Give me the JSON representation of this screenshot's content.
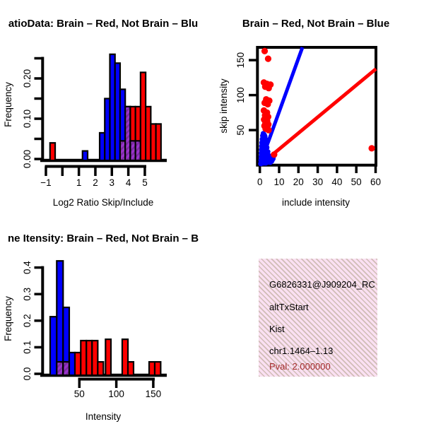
{
  "colors": {
    "red": "#FF0000",
    "blue": "#0000FF",
    "axis": "#000000",
    "background": "#FFFFFF",
    "overlap_base": "#9933CC",
    "overlap_stripe": "#7A2B9E",
    "pval_text": "#A52A2A",
    "info_bg": "#FAE0F2"
  },
  "chart_data": [
    {
      "type": "bar",
      "id": "ratio-histogram",
      "title": "atioData: Brain – Red, Not Brain – Blu",
      "xlabel": "Log2 Ratio Skip/Include",
      "ylabel": "Frequency",
      "xlim": [
        -1.3,
        6.2
      ],
      "ylim": [
        0,
        0.27
      ],
      "x_ticks": [
        -1,
        0,
        1,
        2,
        3,
        4,
        5
      ],
      "x_tick_labels": [
        "−1",
        "",
        "1",
        "2",
        "3",
        "4",
        "5"
      ],
      "y_ticks": [
        0,
        0.05,
        0.1,
        0.15,
        0.2,
        0.25
      ],
      "y_tick_labels": [
        "0.00",
        "",
        "0.10",
        "",
        "0.20",
        ""
      ],
      "legend_note": "red = Brain, blue = Not Brain, hatched purple = overlap",
      "bars": [
        {
          "x0": -0.75,
          "x1": -0.44,
          "h": 0.04,
          "color": "red",
          "overlap_h": 0
        },
        {
          "x0": 1.22,
          "x1": 1.53,
          "h": 0.02,
          "color": "blue",
          "overlap_h": 0
        },
        {
          "x0": 2.26,
          "x1": 2.57,
          "h": 0.065,
          "color": "blue",
          "overlap_h": 0
        },
        {
          "x0": 2.57,
          "x1": 2.88,
          "h": 0.15,
          "color": "blue",
          "overlap_h": 0
        },
        {
          "x0": 2.88,
          "x1": 3.19,
          "h": 0.26,
          "color": "blue",
          "overlap_h": 0
        },
        {
          "x0": 3.19,
          "x1": 3.5,
          "h": 0.238,
          "color": "blue",
          "overlap_h": 0
        },
        {
          "x0": 3.5,
          "x1": 3.81,
          "h": 0.173,
          "color": "blue",
          "overlap_h": 0.045
        },
        {
          "x0": 3.81,
          "x1": 4.12,
          "h": 0.13,
          "color": "red",
          "overlap_h": 0.13
        },
        {
          "x0": 4.12,
          "x1": 4.43,
          "h": 0.13,
          "color": "red",
          "overlap_h": 0.045
        },
        {
          "x0": 4.43,
          "x1": 4.74,
          "h": 0.13,
          "color": "red",
          "overlap_h": 0.045
        },
        {
          "x0": 4.74,
          "x1": 5.05,
          "h": 0.215,
          "color": "red",
          "overlap_h": 0
        },
        {
          "x0": 5.05,
          "x1": 5.36,
          "h": 0.13,
          "color": "red",
          "overlap_h": 0
        },
        {
          "x0": 5.36,
          "x1": 5.67,
          "h": 0.087,
          "color": "red",
          "overlap_h": 0
        },
        {
          "x0": 5.67,
          "x1": 5.98,
          "h": 0.087,
          "color": "red",
          "overlap_h": 0
        }
      ]
    },
    {
      "type": "scatter",
      "id": "intensity-scatter",
      "title": "Brain – Red, Not Brain – Blue",
      "xlabel": "include intensity",
      "ylabel": "skip intensity",
      "xlim": [
        -1.5,
        60.2
      ],
      "ylim": [
        -0.5,
        168
      ],
      "x_ticks": [
        0,
        10,
        20,
        30,
        40,
        50,
        60
      ],
      "x_tick_labels": [
        "0",
        "10",
        "20",
        "30",
        "40",
        "50",
        "60"
      ],
      "y_ticks": [
        50,
        100,
        150
      ],
      "y_tick_labels": [
        "50",
        "100",
        "150"
      ],
      "lines": [
        {
          "color": "blue",
          "slope_note": "steep fit line",
          "px": [
            367.7,
            233.6,
            428,
            67
          ]
        },
        {
          "color": "red",
          "slope_note": "shallow fit line",
          "px": [
            367.7,
            233.6,
            532,
            97.5
          ]
        }
      ],
      "red_points": [
        [
          2.5,
          163
        ],
        [
          4.3,
          152
        ],
        [
          2.1,
          118
        ],
        [
          3.7,
          116
        ],
        [
          5.5,
          115
        ],
        [
          2.8,
          112
        ],
        [
          4.6,
          110
        ],
        [
          3.3,
          94
        ],
        [
          4.9,
          92
        ],
        [
          2.5,
          89
        ],
        [
          4.1,
          87
        ],
        [
          2.1,
          78
        ],
        [
          3.7,
          75
        ],
        [
          2.7,
          71
        ],
        [
          4.3,
          69
        ],
        [
          2.2,
          65
        ],
        [
          3.8,
          63
        ],
        [
          2.9,
          60
        ],
        [
          4.4,
          58
        ],
        [
          2.4,
          56
        ],
        [
          3.9,
          54
        ],
        [
          3.0,
          52
        ],
        [
          4.5,
          50
        ],
        [
          7.4,
          15
        ],
        [
          58,
          24
        ]
      ],
      "blue_points": [
        [
          0.5,
          2
        ],
        [
          0.8,
          4
        ],
        [
          1.2,
          3
        ],
        [
          1.8,
          3
        ],
        [
          2.4,
          4
        ],
        [
          3.0,
          3
        ],
        [
          3.8,
          4
        ],
        [
          4.6,
          5
        ],
        [
          5.4,
          4
        ],
        [
          6.2,
          6
        ],
        [
          6.8,
          9
        ],
        [
          7.2,
          13
        ],
        [
          0.6,
          7
        ],
        [
          1.0,
          9
        ],
        [
          1.5,
          7
        ],
        [
          2.0,
          8
        ],
        [
          2.6,
          9
        ],
        [
          3.3,
          8
        ],
        [
          4.1,
          9
        ],
        [
          4.9,
          10
        ],
        [
          0.7,
          12
        ],
        [
          1.2,
          13
        ],
        [
          1.8,
          12
        ],
        [
          2.4,
          14
        ],
        [
          3.0,
          13
        ],
        [
          3.7,
          15
        ],
        [
          4.4,
          14
        ],
        [
          0.8,
          17
        ],
        [
          1.4,
          18
        ],
        [
          2.0,
          19
        ],
        [
          2.7,
          18
        ],
        [
          3.4,
          20
        ],
        [
          4.1,
          19
        ],
        [
          0.9,
          22
        ],
        [
          1.5,
          23
        ],
        [
          2.2,
          24
        ],
        [
          2.9,
          23
        ],
        [
          3.6,
          25
        ],
        [
          1.0,
          27
        ],
        [
          1.7,
          28
        ],
        [
          2.4,
          29
        ],
        [
          3.1,
          28
        ],
        [
          1.1,
          32
        ],
        [
          1.9,
          33
        ],
        [
          2.6,
          34
        ],
        [
          1.3,
          37
        ],
        [
          2.1,
          38
        ],
        [
          2.9,
          37
        ],
        [
          1.5,
          42
        ],
        [
          2.3,
          43
        ],
        [
          1.8,
          45
        ],
        [
          2.6,
          41
        ]
      ]
    },
    {
      "type": "bar",
      "id": "gene-intensity-histogram",
      "title": "ne Itensity: Brain – Red, Not Brain – B",
      "xlabel": "Intensity",
      "ylabel": "Frequency",
      "xlim": [
        8,
        168
      ],
      "ylim": [
        0,
        0.45
      ],
      "x_ticks": [
        50,
        100,
        150
      ],
      "x_tick_labels": [
        "50",
        "100",
        "150"
      ],
      "y_ticks": [
        0,
        0.1,
        0.2,
        0.3,
        0.4
      ],
      "y_tick_labels": [
        "0.0",
        "0.1",
        "0.2",
        "0.3",
        "0.4"
      ],
      "legend_note": "red = Brain, blue = Not Brain, hatched purple = overlap",
      "bars": [
        {
          "x0": 10.5,
          "x1": 19.4,
          "h": 0.215,
          "color": "blue",
          "overlap_h": 0
        },
        {
          "x0": 19.4,
          "x1": 28.0,
          "h": 0.425,
          "color": "blue",
          "overlap_h": 0.045
        },
        {
          "x0": 28.0,
          "x1": 36.3,
          "h": 0.25,
          "color": "blue",
          "overlap_h": 0.045
        },
        {
          "x0": 36.3,
          "x1": 44.0,
          "h": 0.08,
          "color": "blue",
          "overlap_h": 0
        },
        {
          "x0": 44.0,
          "x1": 51.9,
          "h": 0.08,
          "color": "red",
          "overlap_h": 0
        },
        {
          "x0": 51.9,
          "x1": 59.5,
          "h": 0.125,
          "color": "red",
          "overlap_h": 0
        },
        {
          "x0": 59.5,
          "x1": 67.2,
          "h": 0.125,
          "color": "red",
          "overlap_h": 0
        },
        {
          "x0": 67.2,
          "x1": 74.9,
          "h": 0.125,
          "color": "red",
          "overlap_h": 0
        },
        {
          "x0": 74.9,
          "x1": 82.5,
          "h": 0.045,
          "color": "red",
          "overlap_h": 0
        },
        {
          "x0": 85.4,
          "x1": 92.7,
          "h": 0.13,
          "color": "red",
          "overlap_h": 0
        },
        {
          "x0": 108.0,
          "x1": 115.7,
          "h": 0.13,
          "color": "red",
          "overlap_h": 0
        },
        {
          "x0": 115.7,
          "x1": 123.3,
          "h": 0.045,
          "color": "red",
          "overlap_h": 0
        },
        {
          "x0": 144.4,
          "x1": 152.0,
          "h": 0.045,
          "color": "red",
          "overlap_h": 0
        },
        {
          "x0": 152.0,
          "x1": 160.0,
          "h": 0.045,
          "color": "red",
          "overlap_h": 0
        }
      ]
    }
  ],
  "info_box": {
    "gene_id": "G6826331@J909204_RC",
    "event_type": "altTxStart",
    "gene_name": "Kist",
    "location": "chr1.1464–1.13",
    "pval": "Pval: 2.000000"
  }
}
